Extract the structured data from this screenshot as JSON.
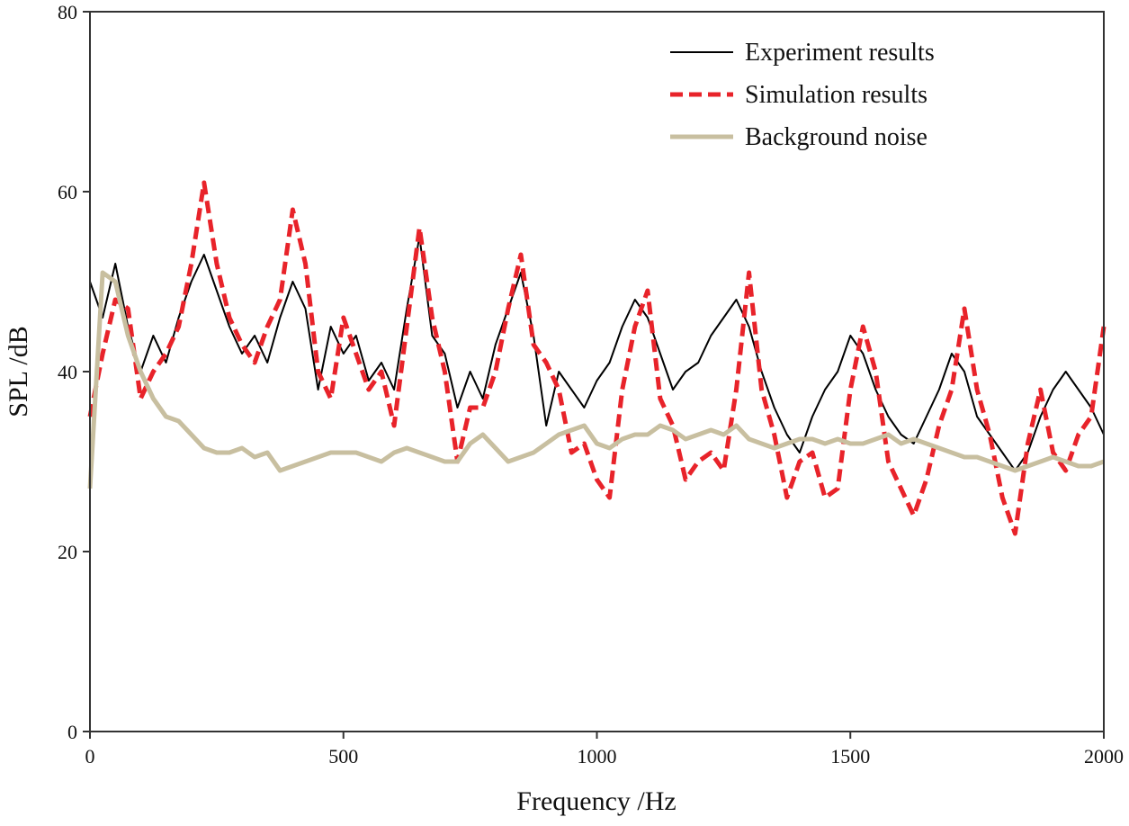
{
  "chart_data": {
    "type": "line",
    "xlabel": "Frequency /Hz",
    "ylabel": "SPL /dB",
    "xlim": [
      0,
      2000
    ],
    "xticks": [
      0,
      500,
      1000,
      1500,
      2000
    ],
    "ylim": [
      0,
      80
    ],
    "yticks": [
      0,
      20,
      40,
      60,
      80
    ],
    "legend": "upper right",
    "x": [
      0,
      25,
      50,
      75,
      100,
      125,
      150,
      175,
      200,
      225,
      250,
      275,
      300,
      325,
      350,
      375,
      400,
      425,
      450,
      475,
      500,
      525,
      550,
      575,
      600,
      625,
      650,
      675,
      700,
      725,
      750,
      775,
      800,
      825,
      850,
      875,
      900,
      925,
      950,
      975,
      1000,
      1025,
      1050,
      1075,
      1100,
      1125,
      1150,
      1175,
      1200,
      1225,
      1250,
      1275,
      1300,
      1325,
      1350,
      1375,
      1400,
      1425,
      1450,
      1475,
      1500,
      1525,
      1550,
      1575,
      1600,
      1625,
      1650,
      1675,
      1700,
      1725,
      1750,
      1775,
      1800,
      1825,
      1850,
      1875,
      1900,
      1925,
      1950,
      1975,
      2000
    ],
    "series": [
      {
        "name": "Experiment results",
        "color": "#000000",
        "linestyle": "solid",
        "linewidth": 2,
        "values": [
          50,
          46,
          52,
          45,
          40,
          44,
          41,
          46,
          50,
          53,
          49,
          45,
          42,
          44,
          41,
          46,
          50,
          47,
          38,
          45,
          42,
          44,
          39,
          41,
          38,
          47,
          55,
          44,
          42,
          36,
          40,
          37,
          43,
          47,
          51,
          44,
          34,
          40,
          38,
          36,
          39,
          41,
          45,
          48,
          46,
          42,
          38,
          40,
          41,
          44,
          46,
          48,
          45,
          40,
          36,
          33,
          31,
          35,
          38,
          40,
          44,
          42,
          38,
          35,
          33,
          32,
          35,
          38,
          42,
          40,
          35,
          33,
          31,
          29,
          31,
          35,
          38,
          40,
          38,
          36,
          33
        ]
      },
      {
        "name": "Simulation results",
        "color": "#e8232a",
        "linestyle": "dashed",
        "linewidth": 5,
        "values": [
          35,
          42,
          48,
          47,
          37,
          40,
          42,
          45,
          52,
          61,
          52,
          46,
          43,
          41,
          45,
          48,
          58,
          52,
          40,
          37,
          46,
          42,
          38,
          40,
          34,
          45,
          56,
          46,
          40,
          30,
          36,
          36,
          40,
          47,
          53,
          43,
          41,
          38,
          31,
          32,
          28,
          26,
          38,
          45,
          49,
          37,
          34,
          28,
          30,
          31,
          29,
          38,
          51,
          38,
          33,
          26,
          30,
          31,
          26,
          27,
          38,
          45,
          40,
          30,
          27,
          24,
          28,
          34,
          38,
          47,
          38,
          33,
          26,
          22,
          32,
          38,
          31,
          29,
          33,
          35,
          45
        ]
      },
      {
        "name": "Background noise",
        "color": "#c8bfa0",
        "linestyle": "solid",
        "linewidth": 5,
        "values": [
          27,
          51,
          50,
          44,
          40,
          37,
          35,
          34.5,
          33,
          31.5,
          31,
          31,
          31.5,
          30.5,
          31,
          29,
          29.5,
          30,
          30.5,
          31,
          31,
          31,
          30.5,
          30,
          31,
          31.5,
          31,
          30.5,
          30,
          30,
          32,
          33,
          31.5,
          30,
          30.5,
          31,
          32,
          33,
          33.5,
          34,
          32,
          31.5,
          32.5,
          33,
          33,
          34,
          33.5,
          32.5,
          33,
          33.5,
          33,
          34,
          32.5,
          32,
          31.5,
          32,
          32.5,
          32.5,
          32,
          32.5,
          32,
          32,
          32.5,
          33,
          32,
          32.5,
          32,
          31.5,
          31,
          30.5,
          30.5,
          30,
          29.5,
          29,
          29.5,
          30,
          30.5,
          30,
          29.5,
          29.5,
          30
        ]
      }
    ]
  }
}
